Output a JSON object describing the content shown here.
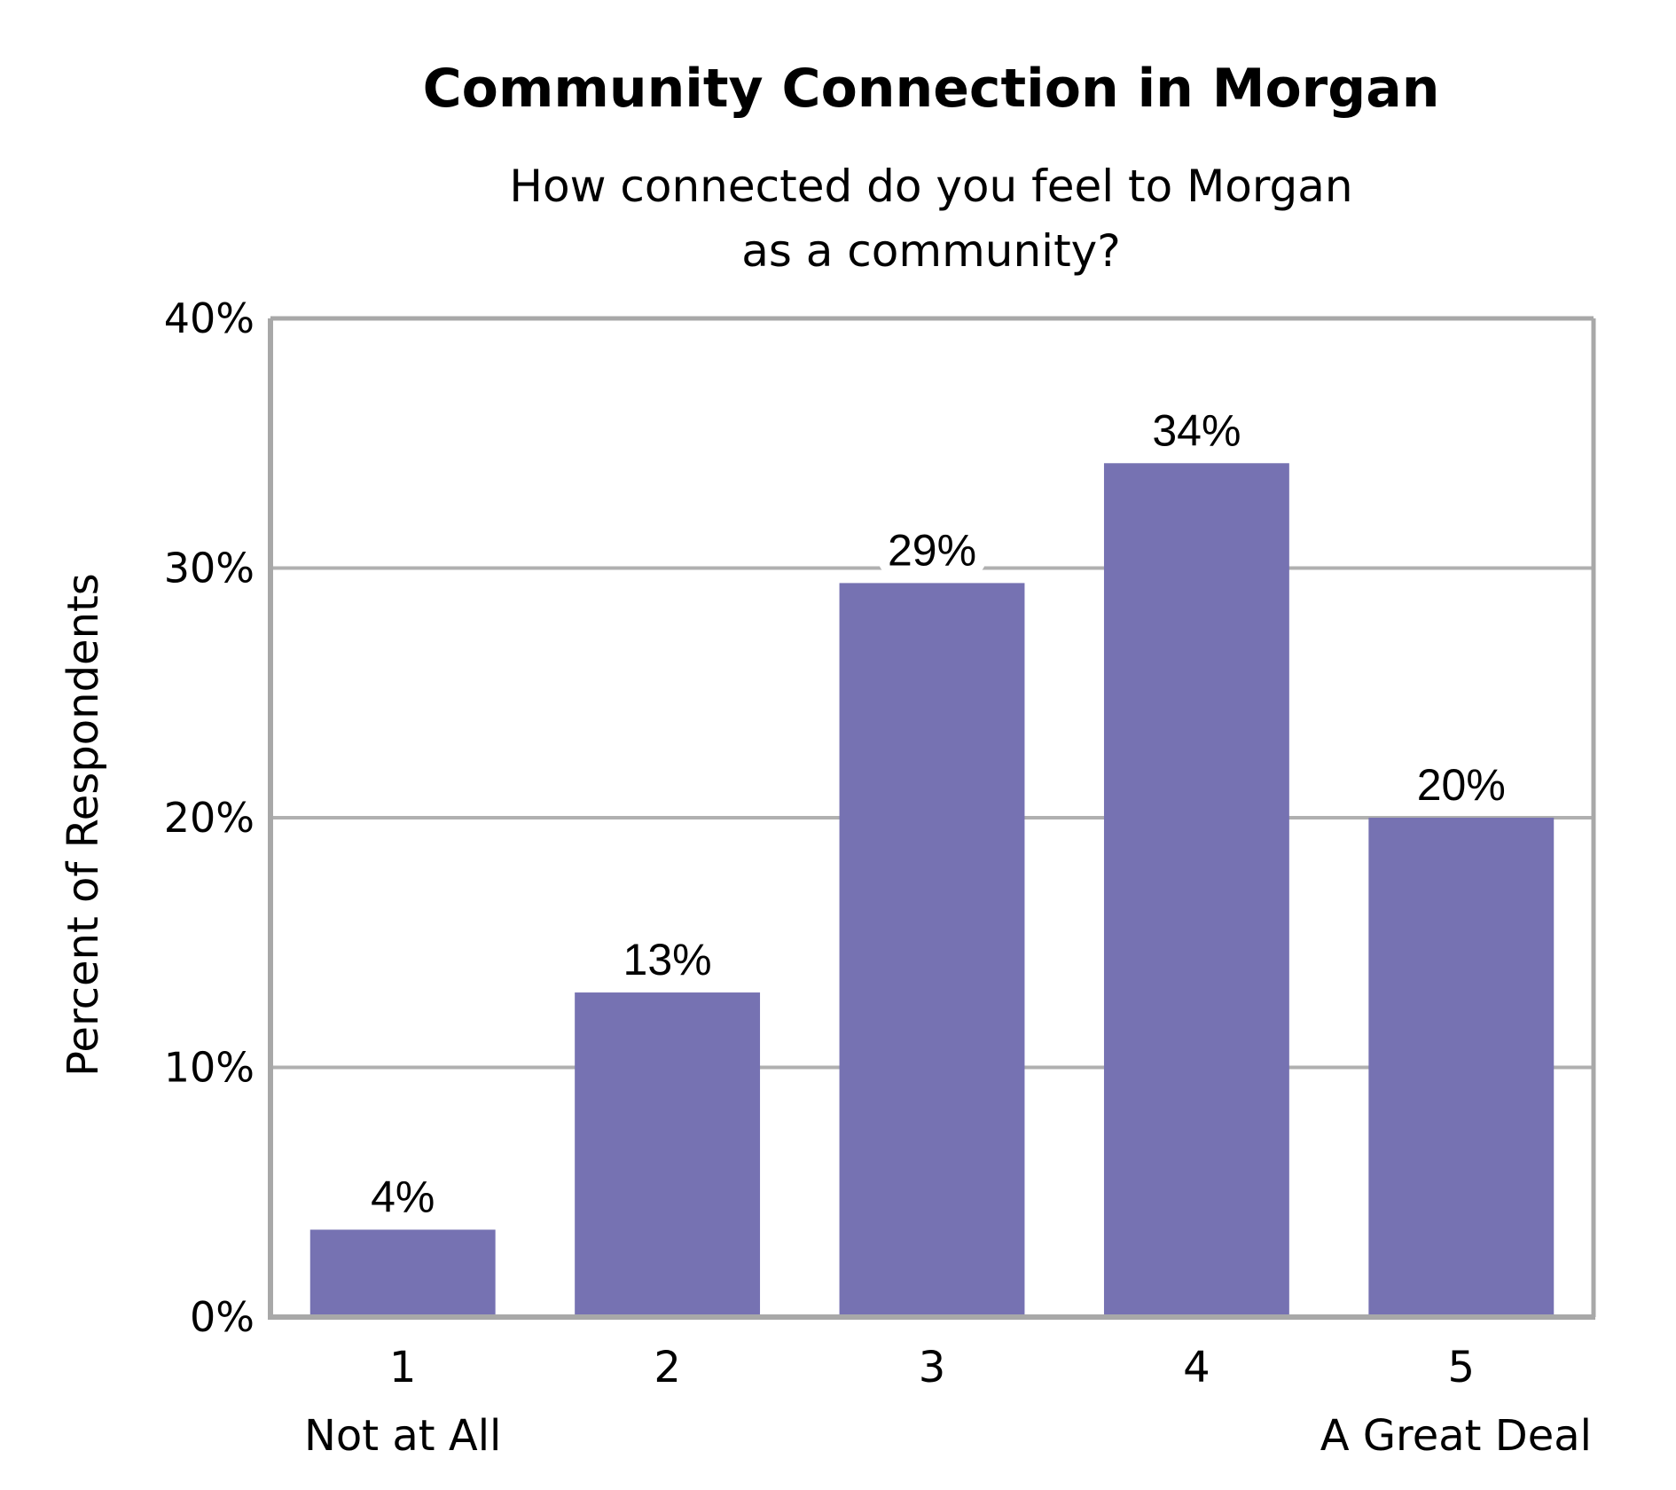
{
  "chart_data": {
    "type": "bar",
    "title": "Community Connection in Morgan",
    "subtitle_lines": [
      "How connected do you feel to Morgan",
      "as a community?"
    ],
    "ylabel": "Percent of Respondents",
    "xlabel": "",
    "categories": [
      "1",
      "2",
      "3",
      "4",
      "5"
    ],
    "category_sublabels": [
      "Not at All",
      "",
      "",
      "",
      "A Great Deal"
    ],
    "values": [
      3.5,
      13,
      29.4,
      34.2,
      20
    ],
    "data_labels": [
      "4%",
      "13%",
      "29%",
      "34%",
      "20%"
    ],
    "ylim": [
      0,
      40
    ],
    "yticks": [
      0,
      10,
      20,
      30,
      40
    ],
    "ytick_labels": [
      "0%",
      "10%",
      "20%",
      "30%",
      "40%"
    ],
    "grid": true,
    "legend": "none",
    "colors": {
      "bar": "#7672b2",
      "grid": "#b0b0b0",
      "frame": "#a8a8a8",
      "text": "#000000"
    }
  }
}
